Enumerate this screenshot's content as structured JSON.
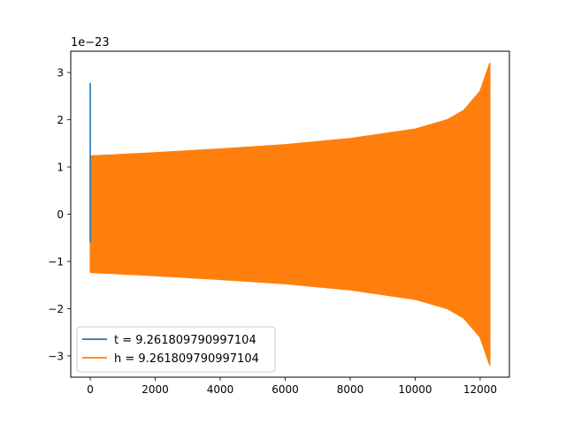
{
  "chart_data": {
    "type": "line",
    "title": "",
    "xlabel": "",
    "ylabel": "",
    "y_offset_label": "1e−23",
    "y_scale_exponent": -23,
    "xlim": [
      -600,
      12900
    ],
    "ylim": [
      -3.45,
      3.45
    ],
    "x_ticks": [
      0,
      2000,
      4000,
      6000,
      8000,
      10000,
      12000
    ],
    "x_tick_labels": [
      "0",
      "2000",
      "4000",
      "6000",
      "8000",
      "10000",
      "12000"
    ],
    "y_ticks": [
      -3,
      -2,
      -1,
      0,
      1,
      2,
      3
    ],
    "y_tick_labels": [
      "−3",
      "−2",
      "−1",
      "0",
      "1",
      "2",
      "3"
    ],
    "grid": false,
    "legend_position": "lower-left",
    "series": [
      {
        "name": "t = 9.261809790997104",
        "color": "#1f77b4",
        "kind": "spike",
        "x": [
          0,
          0,
          0,
          0
        ],
        "y": [
          0.3,
          2.78,
          -0.6,
          1.2
        ]
      },
      {
        "name": "h = 9.261809790997104",
        "color": "#ff7f0e",
        "kind": "chirp-envelope",
        "x_start": 0,
        "x_end": 12300,
        "envelope_x": [
          0,
          2000,
          4000,
          6000,
          8000,
          10000,
          11000,
          11500,
          12000,
          12200,
          12300
        ],
        "envelope_upper": [
          1.23,
          1.3,
          1.38,
          1.47,
          1.6,
          1.8,
          2.0,
          2.2,
          2.6,
          3.0,
          3.2
        ],
        "envelope_lower": [
          -1.23,
          -1.3,
          -1.38,
          -1.47,
          -1.6,
          -1.8,
          -2.0,
          -2.2,
          -2.6,
          -3.0,
          -3.2
        ]
      }
    ]
  }
}
